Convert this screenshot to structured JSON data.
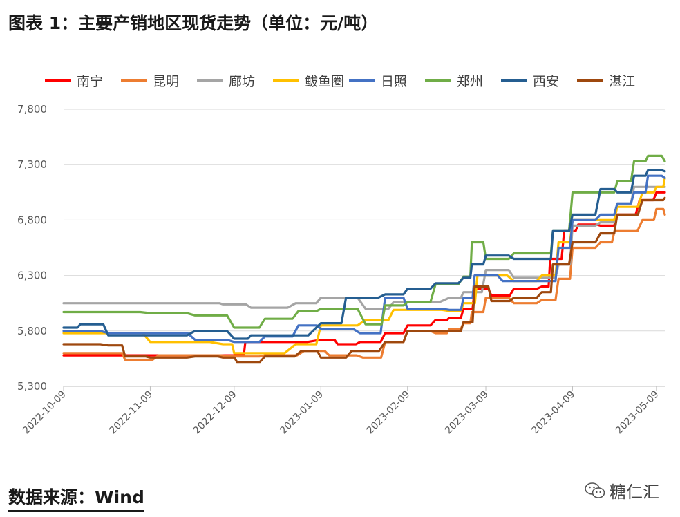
{
  "title": "图表 1：主要产销地区现货走势（单位：元/吨）",
  "source": "数据来源：Wind",
  "watermark": {
    "icon": "wechat-icon",
    "text": "糖仁汇"
  },
  "chart_data": {
    "type": "line",
    "title": "图表 1：主要产销地区现货走势（单位：元/吨）",
    "xlabel": "",
    "ylabel": "",
    "ylim": [
      5300,
      7800
    ],
    "yticks": [
      "5,300",
      "5,800",
      "6,300",
      "6,800",
      "7,300",
      "7,800"
    ],
    "yticks_values": [
      5300,
      5800,
      6300,
      6800,
      7300,
      7800
    ],
    "xlim": [
      "2022-10-09",
      "2023-05-12"
    ],
    "xticks": [
      "2022-10-09",
      "2022-11-09",
      "2022-12-09",
      "2023-01-09",
      "2023-02-09",
      "2023-03-09",
      "2023-04-09",
      "2023-05-09"
    ],
    "grid": "horizontal",
    "legend_position": "top",
    "series": [
      {
        "name": "南宁",
        "color": "#ff0000",
        "x": [
          "2022-10-09",
          "2022-12-10",
          "2022-12-13",
          "2023-01-09",
          "2023-01-15",
          "2023-01-23",
          "2023-02-01",
          "2023-02-09",
          "2023-02-19",
          "2023-02-24",
          "2023-03-01",
          "2023-03-05",
          "2023-03-11",
          "2023-03-19",
          "2023-03-29",
          "2023-04-01",
          "2023-04-06",
          "2023-04-11",
          "2023-04-19",
          "2023-04-25",
          "2023-05-03",
          "2023-05-09",
          "2023-05-12"
        ],
        "y": [
          5580,
          5580,
          5700,
          5720,
          5680,
          5700,
          5780,
          5850,
          5900,
          5920,
          6000,
          6180,
          6120,
          6180,
          6200,
          6450,
          6700,
          6760,
          6750,
          6850,
          6980,
          7050,
          7050
        ]
      },
      {
        "name": "昆明",
        "color": "#ed7d31",
        "x": [
          "2022-10-09",
          "2022-10-25",
          "2022-10-31",
          "2022-11-12",
          "2022-12-09",
          "2022-12-20",
          "2023-01-03",
          "2023-01-12",
          "2023-01-24",
          "2023-02-01",
          "2023-02-09",
          "2023-02-19",
          "2023-02-24",
          "2023-03-01",
          "2023-03-04",
          "2023-03-09",
          "2023-03-19",
          "2023-03-29",
          "2023-04-04",
          "2023-04-09",
          "2023-04-19",
          "2023-04-24",
          "2023-05-04",
          "2023-05-09",
          "2023-05-12"
        ],
        "y": [
          5600,
          5600,
          5540,
          5580,
          5570,
          5580,
          5620,
          5580,
          5560,
          5700,
          5800,
          5780,
          5820,
          5870,
          5970,
          6100,
          6050,
          6080,
          6270,
          6550,
          6600,
          6700,
          6800,
          6900,
          6850
        ]
      },
      {
        "name": "廊坊",
        "color": "#a5a5a5",
        "x": [
          "2022-10-09",
          "2022-11-01",
          "2022-11-28",
          "2022-12-05",
          "2022-12-15",
          "2022-12-31",
          "2023-01-09",
          "2023-01-25",
          "2023-02-04",
          "2023-02-24",
          "2023-03-01",
          "2023-03-09",
          "2023-03-19",
          "2023-03-29",
          "2023-04-04",
          "2023-04-09",
          "2023-04-19",
          "2023-04-25",
          "2023-05-01",
          "2023-05-09",
          "2023-05-12"
        ],
        "y": [
          6050,
          6050,
          6050,
          6040,
          6010,
          6050,
          6100,
          6000,
          6060,
          6100,
          6150,
          6350,
          6280,
          6280,
          6400,
          6750,
          6780,
          6950,
          7100,
          7100,
          7100
        ]
      },
      {
        "name": "鲅鱼圈",
        "color": "#ffc000",
        "x": [
          "2022-10-09",
          "2022-10-25",
          "2022-11-09",
          "2022-12-05",
          "2022-12-09",
          "2022-12-31",
          "2023-01-09",
          "2023-01-25",
          "2023-02-04",
          "2023-02-09",
          "2023-02-24",
          "2023-03-01",
          "2023-03-06",
          "2023-03-19",
          "2023-03-29",
          "2023-04-04",
          "2023-04-09",
          "2023-04-19",
          "2023-04-25",
          "2023-05-04",
          "2023-05-09",
          "2023-05-12"
        ],
        "y": [
          5780,
          5780,
          5700,
          5680,
          5600,
          5680,
          5850,
          5900,
          5990,
          5990,
          5980,
          6050,
          6300,
          6250,
          6300,
          6600,
          6800,
          6800,
          6920,
          7050,
          7100,
          7180
        ]
      },
      {
        "name": "日照",
        "color": "#4472c4",
        "x": [
          "2022-10-09",
          "2022-10-25",
          "2022-11-10",
          "2022-11-25",
          "2022-12-09",
          "2022-12-20",
          "2023-01-01",
          "2023-01-09",
          "2023-01-23",
          "2023-02-01",
          "2023-02-09",
          "2023-02-24",
          "2023-03-01",
          "2023-03-05",
          "2023-03-15",
          "2023-03-29",
          "2023-04-04",
          "2023-04-09",
          "2023-04-19",
          "2023-04-25",
          "2023-05-01",
          "2023-05-06",
          "2023-05-12"
        ],
        "y": [
          5800,
          5780,
          5780,
          5720,
          5700,
          5750,
          5850,
          5820,
          5780,
          6100,
          6000,
          5990,
          6100,
          6300,
          6250,
          6250,
          6550,
          6800,
          6850,
          6950,
          7050,
          7200,
          7180
        ]
      },
      {
        "name": "郑州",
        "color": "#70ad47",
        "x": [
          "2022-10-09",
          "2022-10-20",
          "2022-11-09",
          "2022-11-25",
          "2022-12-09",
          "2022-12-20",
          "2023-01-01",
          "2023-01-09",
          "2023-01-25",
          "2023-02-01",
          "2023-02-09",
          "2023-02-19",
          "2023-03-01",
          "2023-03-04",
          "2023-03-09",
          "2023-03-19",
          "2023-03-29",
          "2023-04-02",
          "2023-04-09",
          "2023-04-19",
          "2023-04-25",
          "2023-05-01",
          "2023-05-06",
          "2023-05-12"
        ],
        "y": [
          5970,
          5970,
          5960,
          5940,
          5830,
          5910,
          5980,
          6000,
          5860,
          6030,
          6060,
          6220,
          6290,
          6600,
          6450,
          6500,
          6500,
          6700,
          7050,
          7050,
          7150,
          7330,
          7380,
          7330
        ]
      },
      {
        "name": "西安",
        "color": "#255e91",
        "x": [
          "2022-10-09",
          "2022-10-15",
          "2022-10-25",
          "2022-11-09",
          "2022-11-25",
          "2022-12-09",
          "2022-12-15",
          "2023-01-09",
          "2023-01-18",
          "2023-02-01",
          "2023-02-09",
          "2023-02-19",
          "2023-03-01",
          "2023-03-04",
          "2023-03-09",
          "2023-03-19",
          "2023-03-29",
          "2023-04-02",
          "2023-04-09",
          "2023-04-19",
          "2023-04-25",
          "2023-05-01",
          "2023-05-06",
          "2023-05-12"
        ],
        "y": [
          5830,
          5860,
          5760,
          5760,
          5800,
          5730,
          5760,
          5870,
          6100,
          6130,
          6180,
          6230,
          6280,
          6400,
          6480,
          6450,
          6450,
          6700,
          6850,
          7080,
          7050,
          7200,
          7250,
          7240
        ]
      },
      {
        "name": "湛江",
        "color": "#9e480e",
        "x": [
          "2022-10-09",
          "2022-10-25",
          "2022-10-31",
          "2022-11-09",
          "2022-11-25",
          "2022-12-05",
          "2022-12-10",
          "2022-12-20",
          "2023-01-02",
          "2023-01-09",
          "2023-01-20",
          "2023-02-01",
          "2023-02-09",
          "2023-02-24",
          "2023-03-01",
          "2023-03-05",
          "2023-03-11",
          "2023-03-19",
          "2023-03-29",
          "2023-04-02",
          "2023-04-09",
          "2023-04-19",
          "2023-04-25",
          "2023-05-04",
          "2023-05-09",
          "2023-05-12"
        ],
        "y": [
          5680,
          5670,
          5570,
          5560,
          5570,
          5560,
          5520,
          5570,
          5620,
          5560,
          5620,
          5700,
          5800,
          5800,
          5880,
          6200,
          6070,
          6100,
          6150,
          6400,
          6600,
          6680,
          6850,
          6980,
          6980,
          7000
        ]
      }
    ]
  }
}
